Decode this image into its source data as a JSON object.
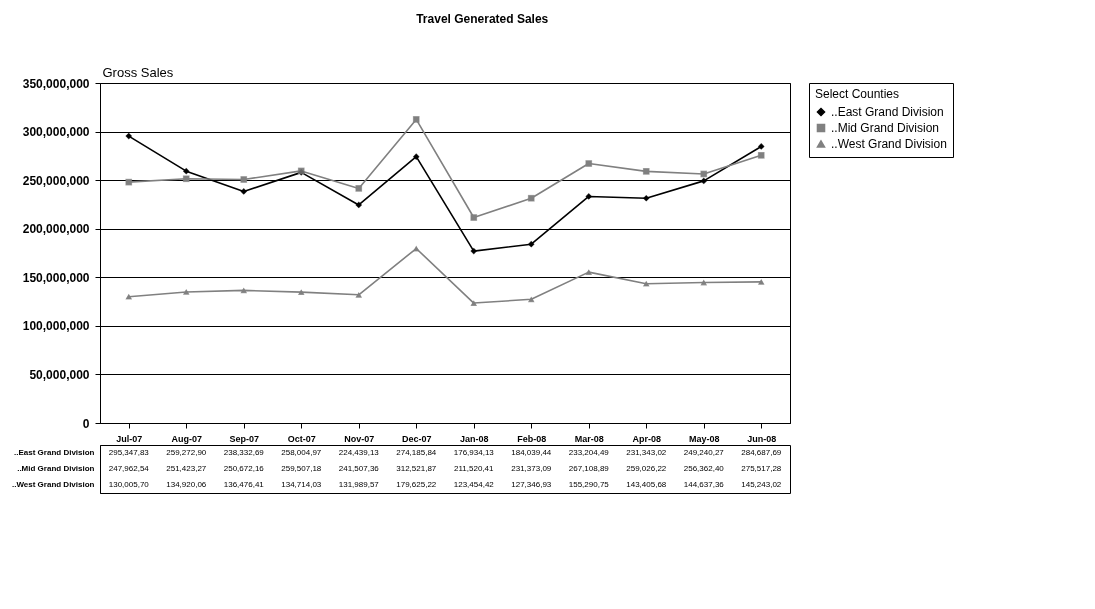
{
  "chart_data": {
    "type": "line",
    "title": "Travel Generated Sales",
    "ylabel": "Gross Sales",
    "legend_title": "Select Counties",
    "categories": [
      "Jul-07",
      "Aug-07",
      "Sep-07",
      "Oct-07",
      "Nov-07",
      "Dec-07",
      "Jan-08",
      "Feb-08",
      "Mar-08",
      "Apr-08",
      "May-08",
      "Jun-08"
    ],
    "series": [
      {
        "name": "..East Grand Division",
        "color": "#000000",
        "marker": "diamond",
        "values": [
          295347830,
          259272900,
          238332690,
          258004970,
          224439130,
          274185840,
          176934130,
          184039440,
          233204490,
          231343020,
          249240270,
          284687690
        ],
        "value_labels": [
          "295,347,83",
          "259,272,90",
          "238,332,69",
          "258,004,97",
          "224,439,13",
          "274,185,84",
          "176,934,13",
          "184,039,44",
          "233,204,49",
          "231,343,02",
          "249,240,27",
          "284,687,69"
        ]
      },
      {
        "name": "..Mid Grand Division",
        "color": "#808080",
        "marker": "square",
        "values": [
          247962540,
          251423270,
          250672160,
          259507180,
          241507360,
          312521870,
          211520410,
          231373090,
          267108890,
          259026220,
          256362400,
          275517280
        ],
        "value_labels": [
          "247,962,54",
          "251,423,27",
          "250,672,16",
          "259,507,18",
          "241,507,36",
          "312,521,87",
          "211,520,41",
          "231,373,09",
          "267,108,89",
          "259,026,22",
          "256,362,40",
          "275,517,28"
        ]
      },
      {
        "name": "..West Grand Division",
        "color": "#808080",
        "marker": "triangle",
        "values": [
          130005700,
          134920060,
          136476410,
          134714030,
          131989570,
          179625220,
          123454420,
          127346930,
          155290750,
          143405680,
          144637360,
          145243020
        ],
        "value_labels": [
          "130,005,70",
          "134,920,06",
          "136,476,41",
          "134,714,03",
          "131,989,57",
          "179,625,22",
          "123,454,42",
          "127,346,93",
          "155,290,75",
          "143,405,68",
          "144,637,36",
          "145,243,02"
        ]
      }
    ],
    "ylim": [
      0,
      350000000
    ],
    "yticks": [
      0,
      {
        "value": 50000000,
        "label": "50,000,000"
      },
      {
        "value": 100000000,
        "label": "100,000,000"
      },
      {
        "value": 150000000,
        "label": "150,000,000"
      },
      {
        "value": 200000000,
        "label": "200,000,000"
      },
      {
        "value": 250000000,
        "label": "250,000,000"
      },
      {
        "value": 300000000,
        "label": "300,000,000"
      },
      {
        "value": 350000000,
        "label": "350,000,000"
      }
    ],
    "grid": "y",
    "legend": "right"
  }
}
